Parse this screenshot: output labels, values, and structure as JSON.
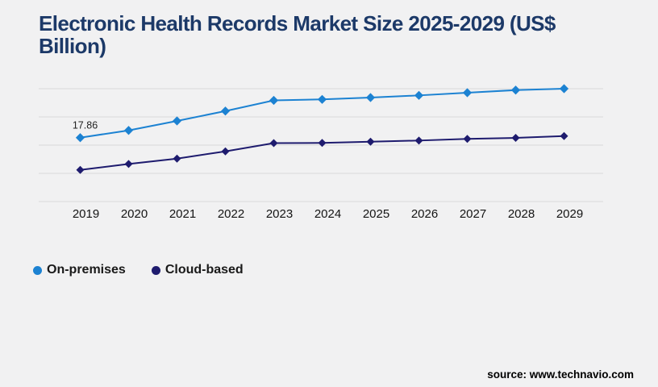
{
  "page": {
    "background_color": "#f1f1f2"
  },
  "chart_data": {
    "type": "line",
    "title": "Electronic Health Records Market Size 2025-2029 (US$ Billion)",
    "title_color": "#1c3968",
    "xlabel": "",
    "ylabel": "",
    "categories": [
      "2019",
      "2020",
      "2021",
      "2022",
      "2023",
      "2024",
      "2025",
      "2026",
      "2027",
      "2028",
      "2029"
    ],
    "series": [
      {
        "name": "On-premises",
        "color": "#1c82d2",
        "marker": "diamond",
        "values": [
          17.86,
          18.89,
          20.23,
          21.63,
          23.14,
          23.28,
          23.54,
          23.85,
          24.23,
          24.6,
          24.8
        ]
      },
      {
        "name": "Cloud-based",
        "color": "#1e1b6e",
        "marker": "diamond",
        "values": [
          13.29,
          14.13,
          14.89,
          15.92,
          17.08,
          17.11,
          17.29,
          17.45,
          17.68,
          17.83,
          18.09
        ]
      }
    ],
    "annotations": [
      {
        "series": 0,
        "index": 0,
        "text": "17.86"
      }
    ],
    "ylim": [
      8.8,
      24.8
    ],
    "grid": "horizontal",
    "gridline_count": 5,
    "gridline_color": "#d9d9d9",
    "y_axis_labels_visible": false,
    "legend_position": "bottom-left"
  },
  "footer": {
    "source": "source: www.technavio.com"
  }
}
